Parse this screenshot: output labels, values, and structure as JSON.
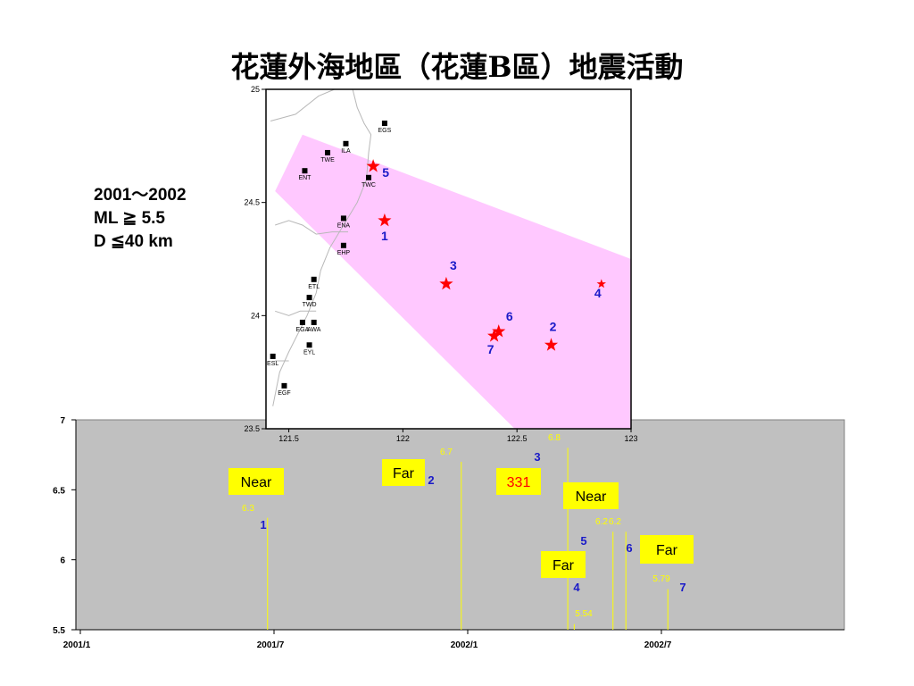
{
  "title": "花蓮外海地區（花蓮B區）地震活動",
  "criteria": [
    "2001～2002",
    "ML ≧ 5.5",
    "D ≦40 km"
  ],
  "colors": {
    "zone": "#ffc8ff",
    "star": "#ff0000",
    "event_label": "#1a1ac8",
    "timeline_bg": "#c0c0c0",
    "stem": "#ffff00",
    "callout_bg": "#ffff00",
    "highlight_text": "#ff0000"
  },
  "chart_data": [
    {
      "type": "scatter",
      "title": "",
      "xlabel": "",
      "ylabel": "",
      "xlim": [
        121.4,
        123.0
      ],
      "ylim": [
        23.5,
        25.0
      ],
      "x_ticks": [
        "121.5",
        "122",
        "122.5",
        "123"
      ],
      "y_ticks": [
        "23.5",
        "24",
        "24.5",
        "25"
      ],
      "grid": false,
      "search_zone_lonlat": [
        [
          121.44,
          24.55
        ],
        [
          121.56,
          24.8
        ],
        [
          123.0,
          24.25
        ],
        [
          123.0,
          23.5
        ],
        [
          122.49,
          23.5
        ]
      ],
      "coastline_lonlat": [
        [
          [
            121.7,
            25.0
          ],
          [
            121.63,
            24.97
          ],
          [
            121.53,
            24.89
          ],
          [
            121.42,
            24.86
          ]
        ],
        [
          [
            121.78,
            25.0
          ],
          [
            121.8,
            24.92
          ],
          [
            121.83,
            24.85
          ],
          [
            121.86,
            24.8
          ],
          [
            121.85,
            24.72
          ],
          [
            121.84,
            24.6
          ],
          [
            121.8,
            24.5
          ],
          [
            121.74,
            24.4
          ],
          [
            121.68,
            24.3
          ],
          [
            121.64,
            24.2
          ],
          [
            121.62,
            24.1
          ],
          [
            121.58,
            24.0
          ],
          [
            121.54,
            23.92
          ],
          [
            121.5,
            23.84
          ],
          [
            121.46,
            23.75
          ],
          [
            121.43,
            23.6
          ]
        ],
        [
          [
            121.76,
            24.37
          ],
          [
            121.69,
            24.37
          ],
          [
            121.62,
            24.36
          ],
          [
            121.56,
            24.4
          ],
          [
            121.5,
            24.42
          ],
          [
            121.44,
            24.4
          ]
        ],
        [
          [
            121.62,
            24.02
          ],
          [
            121.55,
            24.02
          ],
          [
            121.5,
            24.0
          ],
          [
            121.44,
            24.02
          ]
        ],
        [
          [
            121.5,
            23.8
          ],
          [
            121.44,
            23.8
          ]
        ]
      ],
      "stations": [
        {
          "code": "EGS",
          "lon": 121.92,
          "lat": 24.85
        },
        {
          "code": "ILA",
          "lon": 121.75,
          "lat": 24.76
        },
        {
          "code": "TWE",
          "lon": 121.67,
          "lat": 24.72
        },
        {
          "code": "ENT",
          "lon": 121.57,
          "lat": 24.64
        },
        {
          "code": "TWC",
          "lon": 121.85,
          "lat": 24.61
        },
        {
          "code": "ENA",
          "lon": 121.74,
          "lat": 24.43
        },
        {
          "code": "EHP",
          "lon": 121.74,
          "lat": 24.31
        },
        {
          "code": "ETL",
          "lon": 121.61,
          "lat": 24.16
        },
        {
          "code": "TWD",
          "lon": 121.59,
          "lat": 24.08
        },
        {
          "code": "EGA",
          "lon": 121.56,
          "lat": 23.97
        },
        {
          "code": "AWA",
          "lon": 121.61,
          "lat": 23.97
        },
        {
          "code": "EYL",
          "lon": 121.59,
          "lat": 23.87
        },
        {
          "code": "ESL",
          "lon": 121.43,
          "lat": 23.82
        },
        {
          "code": "EGF",
          "lon": 121.48,
          "lat": 23.69
        }
      ],
      "events": [
        {
          "id": "1",
          "lon": 121.92,
          "lat": 24.42
        },
        {
          "id": "2",
          "lon": 122.65,
          "lat": 23.87
        },
        {
          "id": "3",
          "lon": 122.19,
          "lat": 24.14
        },
        {
          "id": "4",
          "lon": 122.87,
          "lat": 24.14
        },
        {
          "id": "5",
          "lon": 121.87,
          "lat": 24.66
        },
        {
          "id": "6",
          "lon": 122.42,
          "lat": 23.93
        },
        {
          "id": "7",
          "lon": 122.4,
          "lat": 23.91
        }
      ]
    },
    {
      "type": "bar",
      "title": "",
      "xlabel": "",
      "ylabel": "",
      "ylim": [
        5.5,
        7.0
      ],
      "y_ticks": [
        "5.5",
        "6",
        "6.5",
        "7"
      ],
      "x_ticks": [
        {
          "label": "2001/1",
          "month": 0
        },
        {
          "label": "2001/7",
          "month": 6
        },
        {
          "label": "2002/1",
          "month": 12
        },
        {
          "label": "2002/7",
          "month": 18
        }
      ],
      "xlim_months": [
        0,
        23
      ],
      "events": [
        {
          "id": "1",
          "month": 5.8,
          "ml": 6.3,
          "ml_label": "6.3"
        },
        {
          "id": "2",
          "month": 11.8,
          "ml": 6.7,
          "ml_label": "6.7"
        },
        {
          "id": "3",
          "month": 15.1,
          "ml": 6.8,
          "ml_label": "6.8"
        },
        {
          "id": "4",
          "month": 15.3,
          "ml": 5.54,
          "ml_label": "5.54"
        },
        {
          "id": "5",
          "month": 16.5,
          "ml": 6.2,
          "ml_label": "6.2"
        },
        {
          "id": "6",
          "month": 16.9,
          "ml": 6.2,
          "ml_label": "6.2"
        },
        {
          "id": "7",
          "month": 18.2,
          "ml": 5.79,
          "ml_label": "5.79"
        }
      ],
      "callouts": [
        {
          "text": "Near",
          "event": "1"
        },
        {
          "text": "Far",
          "event": "2"
        },
        {
          "text": "331",
          "event": "3",
          "highlight": true
        },
        {
          "text": "Far",
          "event": "4"
        },
        {
          "text": "Near",
          "event": "5"
        },
        {
          "text": "Far",
          "event": "6"
        }
      ]
    }
  ]
}
